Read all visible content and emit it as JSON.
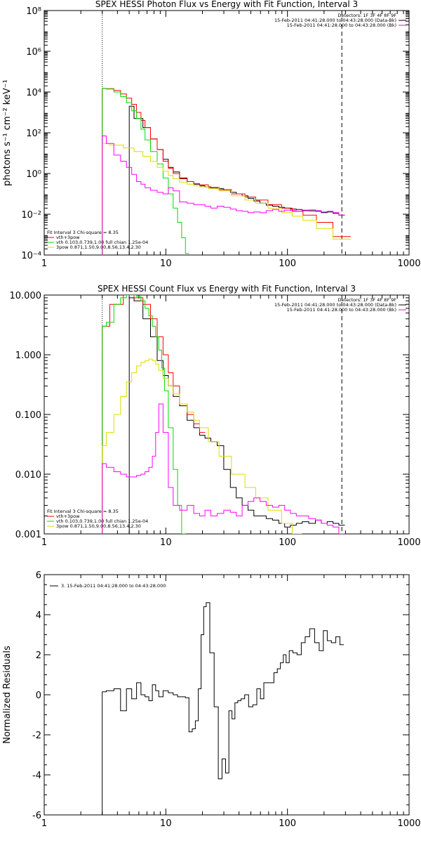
{
  "chart_data": [
    {
      "type": "line",
      "title": "SPEX HESSI Photon Flux vs Energy with Fit Function, Interval 3",
      "xlabel": "",
      "ylabel": "photons s⁻¹ cm⁻² keV⁻¹",
      "x_scale": "log",
      "y_scale": "log",
      "xlim": [
        1,
        1000
      ],
      "ylim": [
        0.0001,
        100000000
      ],
      "x_ticks": [
        "1",
        "10",
        "100",
        "1000"
      ],
      "y_ticks": [
        "10⁻⁴",
        "10⁻²",
        "10⁰",
        "10²",
        "10⁴",
        "10⁶",
        "10⁸"
      ],
      "legend_top_right": [
        {
          "text": "Detectors: 1F 3F 4F 8F 9F",
          "color": "#000000"
        },
        {
          "text": "15-Feb-2011 04:41:28.000 to 04:43:28.000 (Data-Bk)",
          "color": "#000000"
        },
        {
          "text": "15-Feb-2011 04:41:28.000 to 04:43:28.000 (Bk)",
          "color": "#ff00ff"
        }
      ],
      "legend_bottom_left": [
        {
          "text": "Fit Interval 3   Chi-square = 8.35",
          "color": "#000000"
        },
        {
          "text": "vth+3pow",
          "color": "#ff0000"
        },
        {
          "text": "vth 0.103,0.739,1.00  full chian 1.25e-04",
          "color": "#00dd00"
        },
        {
          "text": "3pow 0.871,1.50,9.00,8.56,13.4,2.30",
          "color": "#dddd00"
        }
      ],
      "vlines": [
        {
          "x": 3,
          "style": "dotted"
        },
        {
          "x": 280,
          "style": "dashed"
        }
      ],
      "series": [
        {
          "name": "Data-Bk",
          "color": "#000000",
          "x": [
            5,
            6,
            7,
            8,
            9,
            10,
            11,
            12,
            14,
            16,
            18,
            20,
            22,
            25,
            28,
            32,
            36,
            40,
            45,
            50,
            56,
            63,
            71,
            80,
            90,
            100,
            112,
            125,
            140,
            160,
            180,
            200,
            225,
            250,
            280
          ],
          "y": [
            2000,
            500,
            180,
            50,
            15,
            5,
            2,
            1.2,
            0.6,
            0.4,
            0.3,
            0.25,
            0.22,
            0.2,
            0.18,
            0.16,
            0.12,
            0.1,
            0.08,
            0.06,
            0.045,
            0.035,
            0.028,
            0.025,
            0.022,
            0.02,
            0.018,
            0.017,
            0.015,
            0.016,
            0.014,
            0.012,
            0.013,
            0.011,
            0.009
          ]
        },
        {
          "name": "vth+3pow",
          "color": "#ff0000",
          "x": [
            3,
            3.5,
            4,
            4.5,
            5,
            5.5,
            6,
            6.5,
            7,
            8,
            9,
            10,
            11,
            12,
            14,
            16,
            18,
            20,
            25,
            30,
            40,
            50,
            60,
            80,
            100,
            120,
            150,
            200,
            280
          ],
          "y": [
            15000,
            14500,
            12000,
            8000,
            5000,
            2500,
            1000,
            400,
            180,
            50,
            15,
            4,
            1.8,
            1.0,
            0.55,
            0.4,
            0.32,
            0.28,
            0.21,
            0.16,
            0.1,
            0.07,
            0.05,
            0.03,
            0.02,
            0.014,
            0.009,
            0.004,
            0.0008
          ]
        },
        {
          "name": "vth",
          "color": "#00dd00",
          "x": [
            3,
            3.5,
            4,
            4.5,
            5,
            5.5,
            6,
            6.5,
            7,
            8,
            9,
            10,
            11,
            12,
            13,
            14,
            15
          ],
          "y": [
            15000,
            14000,
            10000,
            6000,
            3000,
            1200,
            500,
            150,
            45,
            12,
            3,
            0.6,
            0.1,
            0.02,
            0.004,
            0.0007,
            0.00012
          ]
        },
        {
          "name": "3pow",
          "color": "#dddd00",
          "x": [
            3,
            4,
            5,
            6,
            7,
            8,
            9,
            10,
            11,
            12,
            14,
            16,
            18,
            20,
            25,
            30,
            40,
            50,
            60,
            80,
            100,
            120,
            150,
            200,
            280
          ],
          "y": [
            30,
            25,
            18,
            12,
            7,
            4,
            2,
            1.3,
            0.8,
            0.55,
            0.38,
            0.3,
            0.25,
            0.22,
            0.18,
            0.14,
            0.08,
            0.05,
            0.035,
            0.02,
            0.012,
            0.008,
            0.005,
            0.002,
            0.0006
          ]
        },
        {
          "name": "Bk",
          "color": "#ff00ff",
          "x": [
            3,
            3.5,
            4,
            4.5,
            5,
            5.5,
            6,
            6.5,
            7,
            8,
            9,
            10,
            11,
            12,
            14,
            16,
            18,
            20,
            22,
            25,
            28,
            32,
            36,
            40,
            45,
            50,
            56,
            63,
            71,
            80,
            90,
            100,
            112,
            125,
            140,
            160,
            180,
            200,
            225,
            250,
            280
          ],
          "y": [
            70,
            30,
            8,
            4,
            2,
            0.9,
            0.4,
            0.3,
            0.2,
            0.15,
            0.12,
            0.1,
            0.2,
            0.14,
            0.04,
            0.035,
            0.03,
            0.03,
            0.025,
            0.02,
            0.025,
            0.022,
            0.018,
            0.015,
            0.014,
            0.012,
            0.013,
            0.012,
            0.015,
            0.017,
            0.014,
            0.016,
            0.015,
            0.014,
            0.016,
            0.014,
            0.015,
            0.013,
            0.014,
            0.012,
            0.009
          ]
        }
      ]
    },
    {
      "type": "line",
      "title": "SPEX HESSI Count Flux vs Energy with Fit Function, Interval 3",
      "xlabel": "",
      "ylabel": "",
      "x_scale": "log",
      "y_scale": "log",
      "xlim": [
        1,
        1000
      ],
      "ylim": [
        0.001,
        10
      ],
      "x_ticks": [
        "1",
        "10",
        "100",
        "1000"
      ],
      "y_ticks": [
        "0.001",
        "0.010",
        "0.100",
        "1.000",
        "10.000"
      ],
      "legend_top_right": [
        {
          "text": "Detectors: 1F 3F 4F 8F 9F",
          "color": "#000000"
        },
        {
          "text": "15-Feb-2011 04:41:28.000 to 04:43:28.000 (Data-Bk)",
          "color": "#000000"
        },
        {
          "text": "15-Feb-2011 04:41:28.000 to 04:43:28.000 (Bk)",
          "color": "#ff00ff"
        }
      ],
      "legend_bottom_left": [
        {
          "text": "Fit Interval 3   Chi-square = 8.35",
          "color": "#000000"
        },
        {
          "text": "vth+3pow",
          "color": "#ff0000"
        },
        {
          "text": "vth 0.103,0.739,1.00  full chian 1.25e-04",
          "color": "#00dd00"
        },
        {
          "text": "3pow 0.871,1.50,9.00,8.56,13.4,2.30",
          "color": "#dddd00"
        }
      ],
      "vlines": [
        {
          "x": 3,
          "style": "dotted"
        },
        {
          "x": 280,
          "style": "dashed"
        }
      ],
      "series": [
        {
          "name": "Data-Bk",
          "color": "#000000",
          "x": [
            5,
            6,
            7,
            8,
            9,
            10,
            11,
            12,
            14,
            16,
            18,
            20,
            22,
            25,
            28,
            32,
            36,
            40,
            45,
            50,
            56,
            63,
            71,
            80,
            90,
            100,
            112,
            125,
            140,
            160,
            180,
            200,
            225,
            250,
            280
          ],
          "y": [
            9,
            8,
            4,
            2,
            0.8,
            0.45,
            0.3,
            0.2,
            0.14,
            0.08,
            0.06,
            0.045,
            0.04,
            0.035,
            0.03,
            0.012,
            0.006,
            0.004,
            0.003,
            0.0025,
            0.002,
            0.002,
            0.0018,
            0.0017,
            0.0015,
            0.0013,
            0.0014,
            0.0015,
            0.0016,
            0.0015,
            0.0017,
            0.0015,
            0.0016,
            0.0015,
            0.0014
          ]
        },
        {
          "name": "vth+3pow",
          "color": "#ff0000",
          "x": [
            3,
            4,
            5,
            6,
            7,
            8,
            9,
            10,
            11,
            12,
            14,
            16,
            18,
            20
          ],
          "y": [
            3,
            7,
            10,
            9,
            7,
            4,
            2,
            1.0,
            0.5,
            0.3,
            0.15,
            0.1,
            0.07,
            0.05
          ]
        },
        {
          "name": "vth",
          "color": "#00dd00",
          "x": [
            3,
            3.5,
            4,
            4.5,
            5,
            5.5,
            6,
            6.5,
            7,
            7.5,
            8,
            8.5,
            9,
            9.5,
            10,
            11,
            12,
            13,
            14
          ],
          "y": [
            3,
            3.5,
            7,
            9,
            10,
            10,
            9.5,
            8,
            6,
            4.5,
            3,
            2,
            1.2,
            0.6,
            0.25,
            0.06,
            0.012,
            0.003,
            0.001
          ]
        },
        {
          "name": "3pow",
          "color": "#dddd00",
          "x": [
            3,
            3.5,
            4,
            4.5,
            5,
            5.5,
            6,
            6.5,
            7,
            7.5,
            8,
            8.5,
            9,
            10,
            11,
            12,
            14,
            16,
            18,
            20,
            25,
            30,
            40,
            50,
            60,
            80,
            100,
            120
          ],
          "y": [
            0.03,
            0.05,
            0.1,
            0.2,
            0.35,
            0.5,
            0.65,
            0.75,
            0.8,
            0.85,
            0.8,
            0.7,
            0.55,
            0.4,
            0.3,
            0.22,
            0.15,
            0.11,
            0.08,
            0.06,
            0.035,
            0.02,
            0.01,
            0.006,
            0.004,
            0.0025,
            0.0015,
            0.001
          ]
        },
        {
          "name": "Bk",
          "color": "#ff00ff",
          "x": [
            3,
            3.5,
            4,
            4.5,
            5,
            5.5,
            6,
            6.5,
            7,
            7.5,
            8,
            8.5,
            9,
            10,
            11,
            12,
            14,
            16,
            18,
            20,
            22,
            25,
            28,
            32,
            36,
            40,
            45,
            50,
            56,
            63,
            71,
            80,
            90,
            100,
            112,
            125,
            140,
            160,
            180,
            200,
            225,
            250,
            280
          ],
          "y": [
            0.015,
            0.013,
            0.011,
            0.01,
            0.009,
            0.009,
            0.0095,
            0.01,
            0.011,
            0.013,
            0.02,
            0.05,
            0.15,
            0.05,
            0.006,
            0.003,
            0.0025,
            0.003,
            0.0022,
            0.002,
            0.0025,
            0.002,
            0.0022,
            0.0025,
            0.0023,
            0.002,
            0.003,
            0.0035,
            0.004,
            0.0035,
            0.003,
            0.0028,
            0.003,
            0.0025,
            0.0022,
            0.002,
            0.002,
            0.0018,
            0.0017,
            0.0015,
            0.0014,
            0.0013,
            0.001
          ]
        }
      ]
    },
    {
      "type": "line",
      "title": "",
      "xlabel": "",
      "ylabel": "Normalized Residuals",
      "x_scale": "log",
      "y_scale": "linear",
      "xlim": [
        1,
        1000
      ],
      "ylim": [
        -6,
        6
      ],
      "x_ticks": [
        "1",
        "10",
        "100",
        "1000"
      ],
      "y_ticks": [
        "-6",
        "-4",
        "-2",
        "0",
        "2",
        "4",
        "6"
      ],
      "legend_top_left": [
        {
          "text": "3. 15-Feb-2011 04:41:28.000 to 04:43:28.000",
          "color": "#000000"
        }
      ],
      "series": [
        {
          "name": "",
          "color": "#000000",
          "x": [
            3,
            3.5,
            4,
            4.5,
            5,
            5.5,
            6,
            6.5,
            7,
            7.5,
            8,
            8.5,
            9,
            10,
            11,
            12,
            13,
            14,
            15,
            16,
            17,
            18,
            19,
            20,
            21,
            22,
            24,
            26,
            28,
            30,
            32,
            34,
            36,
            38,
            40,
            43,
            46,
            50,
            54,
            58,
            62,
            66,
            70,
            75,
            80,
            85,
            90,
            95,
            100,
            107,
            115,
            125,
            135,
            145,
            160,
            175,
            190,
            205,
            220,
            240,
            260,
            280
          ],
          "y": [
            0.15,
            0.2,
            0.3,
            -0.8,
            0.3,
            -0.2,
            0.6,
            0,
            -0.1,
            -0.3,
            0.5,
            0.2,
            -0.1,
            0.2,
            0.1,
            0,
            -0.1,
            -0.1,
            -0.15,
            -1.85,
            -1.7,
            -1.3,
            0.3,
            3,
            4.4,
            4.6,
            2.1,
            -0.6,
            -4.2,
            -3.2,
            -3.9,
            -0.8,
            -1.2,
            -0.4,
            -0.3,
            -0.2,
            0,
            -0.6,
            -0.5,
            0.3,
            -0.2,
            0.6,
            0.6,
            0.6,
            1.1,
            1.3,
            1.6,
            2,
            1.6,
            2.2,
            2.1,
            2,
            2.6,
            2.9,
            3.3,
            2.6,
            2.2,
            3.2,
            2.7,
            2.6,
            2.9,
            2.5
          ]
        }
      ]
    }
  ]
}
